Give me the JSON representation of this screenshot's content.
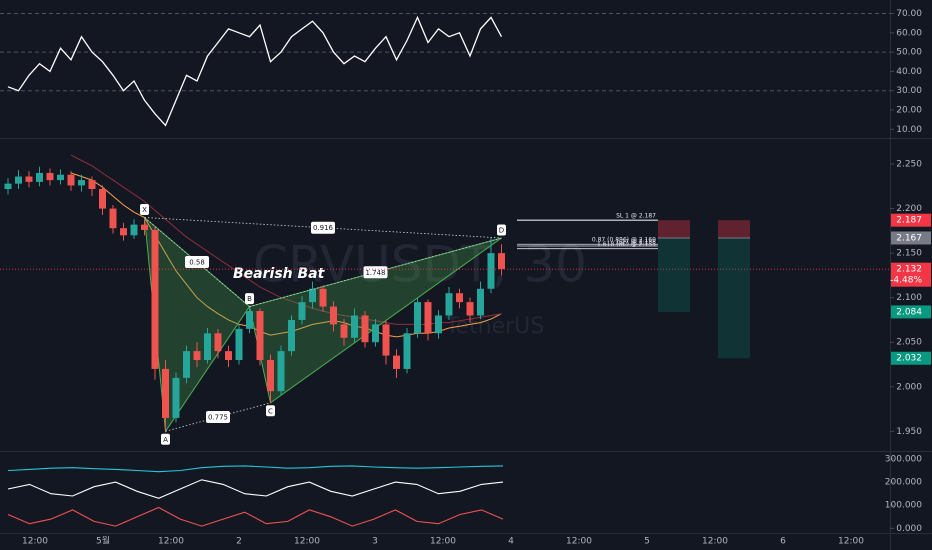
{
  "chart_data": [
    {
      "type": "line",
      "color": "#ffffff",
      "values": [
        32,
        30,
        38,
        44,
        40,
        52,
        46,
        58,
        50,
        45,
        38,
        30,
        35,
        25,
        18,
        12,
        25,
        38,
        35,
        48,
        55,
        62,
        60,
        58,
        64,
        45,
        50,
        58,
        62,
        66,
        60,
        50,
        44,
        48,
        45,
        52,
        58,
        46,
        56,
        68,
        55,
        62,
        58,
        60,
        48,
        62,
        68,
        58
      ],
      "ylim": [
        6,
        77
      ],
      "yticks": [
        {
          "value": 70,
          "label": "70.00"
        },
        {
          "value": 60,
          "label": "60.00"
        },
        {
          "value": 50,
          "label": "50.00"
        },
        {
          "value": 40,
          "label": "40.00"
        },
        {
          "value": 30,
          "label": "30.00"
        },
        {
          "value": 20,
          "label": "20.00"
        },
        {
          "value": 10,
          "label": "10.00"
        }
      ],
      "levels": [
        70,
        50,
        30
      ]
    },
    {
      "type": "candlestick",
      "up_color": "#26a69a",
      "down_color": "#ef5350",
      "open": [
        2.222,
        2.228,
        2.236,
        2.23,
        2.24,
        2.232,
        2.238,
        2.226,
        2.232,
        2.222,
        2.2,
        2.178,
        2.17,
        2.182,
        2.176,
        2.02,
        1.965,
        2.01,
        2.04,
        2.03,
        2.06,
        2.04,
        2.03,
        2.065,
        2.085,
        2.03,
        1.995,
        2.04,
        2.075,
        2.095,
        2.11,
        2.09,
        2.07,
        2.055,
        2.08,
        2.05,
        2.07,
        2.035,
        2.02,
        2.06,
        2.095,
        2.06,
        2.08,
        2.105,
        2.095,
        2.08,
        2.11,
        2.15
      ],
      "high": [
        2.234,
        2.243,
        2.242,
        2.247,
        2.245,
        2.244,
        2.242,
        2.238,
        2.236,
        2.226,
        2.204,
        2.184,
        2.188,
        2.19,
        2.18,
        2.03,
        2.016,
        2.046,
        2.05,
        2.066,
        2.065,
        2.046,
        2.07,
        2.09,
        2.088,
        2.036,
        2.046,
        2.08,
        2.102,
        2.118,
        2.114,
        2.096,
        2.076,
        2.088,
        2.085,
        2.076,
        2.074,
        2.042,
        2.066,
        2.1,
        2.098,
        2.086,
        2.112,
        2.11,
        2.1,
        2.118,
        2.167,
        2.16
      ],
      "low": [
        2.216,
        2.222,
        2.224,
        2.225,
        2.226,
        2.227,
        2.22,
        2.219,
        2.214,
        2.193,
        2.172,
        2.164,
        2.166,
        2.17,
        2.008,
        1.95,
        1.96,
        2.004,
        2.022,
        2.026,
        2.032,
        2.022,
        2.025,
        2.06,
        2.024,
        1.982,
        1.99,
        2.035,
        2.07,
        2.088,
        2.084,
        2.062,
        2.046,
        2.05,
        2.044,
        2.045,
        2.025,
        2.01,
        2.015,
        2.055,
        2.052,
        2.054,
        2.075,
        2.088,
        2.072,
        2.076,
        2.105,
        2.125
      ],
      "close": [
        2.228,
        2.236,
        2.23,
        2.24,
        2.232,
        2.238,
        2.226,
        2.232,
        2.222,
        2.2,
        2.178,
        2.17,
        2.182,
        2.176,
        2.02,
        1.965,
        2.01,
        2.04,
        2.03,
        2.06,
        2.04,
        2.03,
        2.065,
        2.085,
        2.03,
        1.995,
        2.04,
        2.075,
        2.095,
        2.11,
        2.09,
        2.07,
        2.055,
        2.08,
        2.05,
        2.07,
        2.035,
        2.02,
        2.06,
        2.095,
        2.06,
        2.08,
        2.105,
        2.095,
        2.08,
        2.11,
        2.15,
        2.132
      ],
      "ylim": [
        1.929,
        2.277
      ],
      "yticks": [
        {
          "value": 2.25,
          "label": "2.250"
        },
        {
          "value": 2.2,
          "label": "2.200"
        },
        {
          "value": 2.15,
          "label": "2.150"
        },
        {
          "value": 2.1,
          "label": "2.100"
        },
        {
          "value": 2.05,
          "label": "2.050"
        },
        {
          "value": 2.0,
          "label": "2.000"
        },
        {
          "value": 1.95,
          "label": "1.950"
        }
      ],
      "moving_averages": [
        {
          "color": "#f7a04b",
          "values": [
            null,
            null,
            null,
            null,
            null,
            null,
            2.24,
            2.236,
            2.232,
            2.224,
            2.214,
            2.204,
            2.196,
            2.19,
            2.17,
            2.15,
            2.13,
            2.115,
            2.1,
            2.09,
            2.082,
            2.075,
            2.07,
            2.068,
            2.062,
            2.058,
            2.06,
            2.062,
            2.066,
            2.07,
            2.072,
            2.074,
            2.072,
            2.068,
            2.066,
            2.062,
            2.058,
            2.056,
            2.058,
            2.06,
            2.06,
            2.062,
            2.066,
            2.068,
            2.07,
            2.072,
            2.076,
            2.082
          ]
        },
        {
          "color": "#8e2f3f",
          "values": [
            null,
            null,
            null,
            null,
            null,
            null,
            2.26,
            2.254,
            2.248,
            2.24,
            2.232,
            2.224,
            2.216,
            2.208,
            2.198,
            2.188,
            2.178,
            2.168,
            2.16,
            2.152,
            2.144,
            2.136,
            2.128,
            2.12,
            2.112,
            2.106,
            2.1,
            2.096,
            2.092,
            2.088,
            2.085,
            2.082,
            2.08,
            2.078,
            2.076,
            2.074,
            2.072,
            2.07,
            2.07,
            2.07,
            2.07,
            2.072,
            2.072,
            2.074,
            2.076,
            2.078,
            2.08,
            2.082
          ]
        }
      ],
      "pattern": {
        "title": "Bearish Bat",
        "color": "#4caf50",
        "points": [
          {
            "label": "X",
            "index": 13,
            "price": 2.19
          },
          {
            "label": "A",
            "index": 15,
            "price": 1.95
          },
          {
            "label": "B",
            "index": 23,
            "price": 2.09
          },
          {
            "label": "C",
            "index": 25,
            "price": 1.982
          },
          {
            "label": "D",
            "index": 47,
            "price": 2.167
          }
        ],
        "ratios": {
          "XB": 0.58,
          "XD": 0.916,
          "BD": 1.748,
          "AC": 0.775
        }
      },
      "levels": [
        {
          "label": "SL 1 @ 2.187",
          "value": 2.187
        },
        {
          "label": "0.87 (0.886) @ 2.160",
          "value": 2.16
        },
        {
          "label": "1.27 @ 2.158",
          "value": 2.158
        },
        {
          "label": "1.618 (BC) @ 2.155",
          "value": 2.155
        }
      ],
      "positions": [
        {
          "entry": 2.167,
          "stop": 2.187,
          "target": 2.084
        },
        {
          "entry": 2.167,
          "stop": 2.187,
          "target": 2.032
        }
      ],
      "last_price": 2.132,
      "price_tags": [
        {
          "value": 2.187,
          "color": "#f23645"
        },
        {
          "value": 2.167,
          "color": "#787b86"
        },
        {
          "value": 2.132,
          "color": "#f23645",
          "change": {
            "value": -4.48,
            "label": "-4.48%"
          }
        },
        {
          "value": 2.084,
          "color": "#089981"
        },
        {
          "value": 2.032,
          "color": "#089981"
        }
      ],
      "watermark": [
        "CRVUSDT, 30",
        "TetherUS"
      ]
    },
    {
      "type": "line",
      "series": [
        {
          "color": "#26c6da",
          "values": [
            250,
            255,
            260,
            262,
            258,
            255,
            250,
            245,
            250,
            262,
            268,
            270,
            265,
            260,
            262,
            268,
            270,
            265,
            262,
            260,
            262,
            265,
            268,
            270
          ]
        },
        {
          "color": "#ffffff",
          "values": [
            170,
            190,
            150,
            140,
            180,
            200,
            160,
            130,
            170,
            210,
            190,
            150,
            140,
            180,
            200,
            160,
            140,
            170,
            200,
            190,
            150,
            160,
            190,
            200
          ]
        },
        {
          "color": "#ef5350",
          "values": [
            60,
            20,
            40,
            80,
            30,
            10,
            50,
            90,
            40,
            10,
            40,
            70,
            20,
            30,
            80,
            50,
            10,
            40,
            80,
            30,
            20,
            60,
            80,
            40
          ]
        }
      ],
      "ylim": [
        -20,
        330
      ],
      "yticks": [
        {
          "value": 300,
          "label": "300.000"
        },
        {
          "value": 200,
          "label": "200.000"
        },
        {
          "value": 100,
          "label": "100.000"
        },
        {
          "value": 0,
          "label": "0.000"
        }
      ]
    }
  ],
  "x_labels": [
    "12:00",
    "5월",
    "12:00",
    "2",
    "12:00",
    "3",
    "12:00",
    "4",
    "12:00",
    "5",
    "12:00",
    "6",
    "12:00"
  ]
}
